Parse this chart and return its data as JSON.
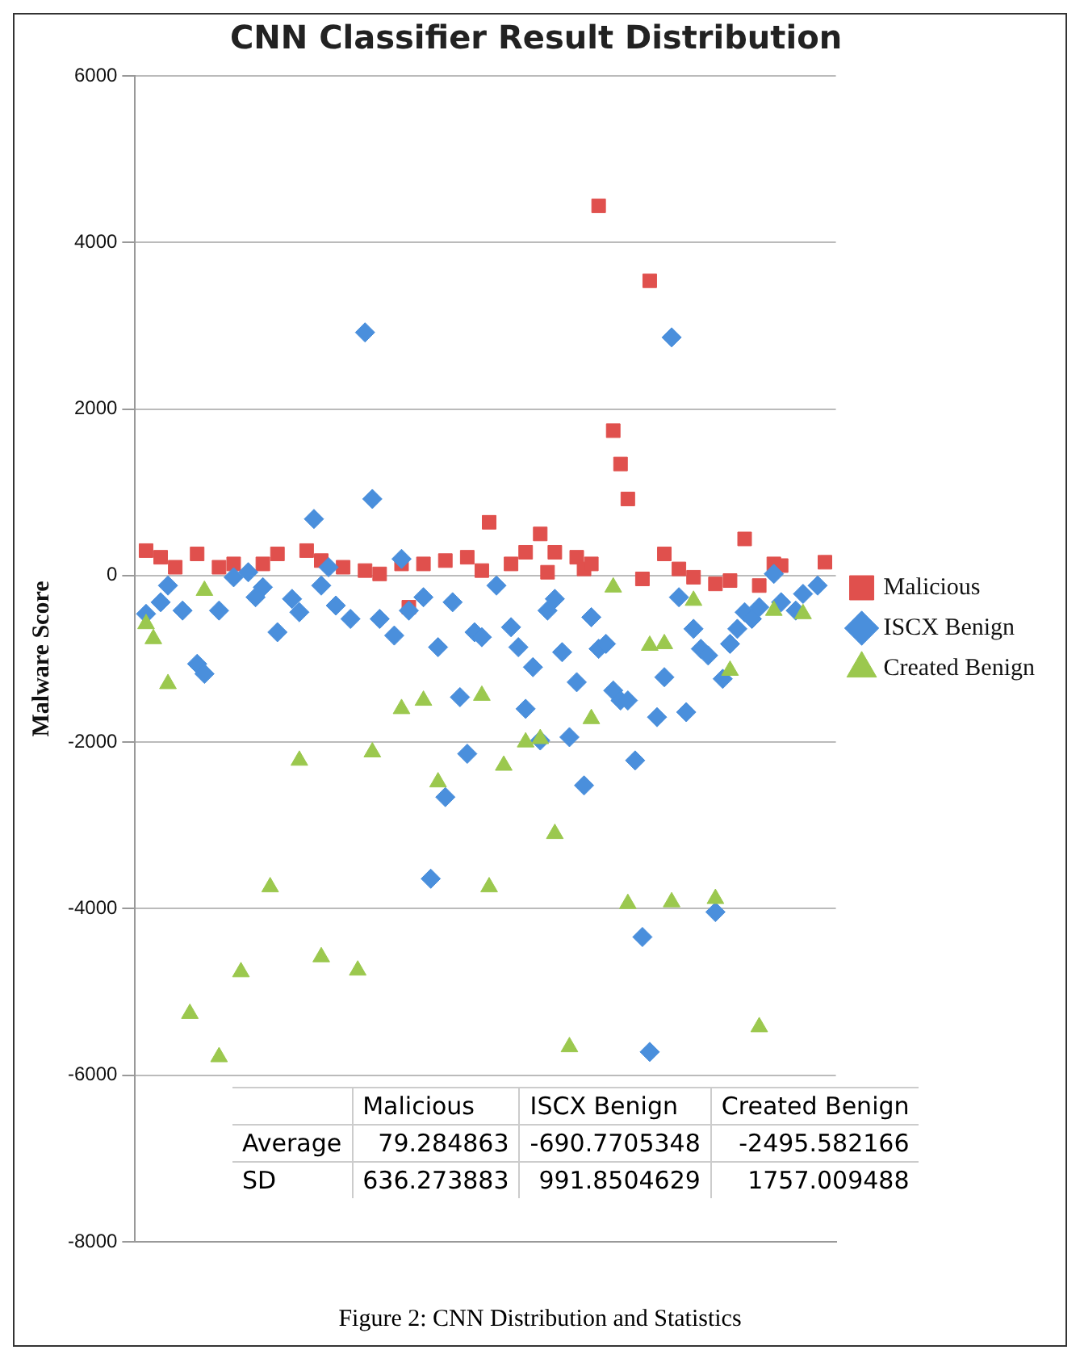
{
  "chart_data": {
    "type": "scatter",
    "title": "CNN Classifier Result Distribution",
    "ylabel": "Malware Score",
    "ylim": [
      -8000,
      6000
    ],
    "yticks": [
      -8000,
      -6000,
      -4000,
      -2000,
      0,
      2000,
      4000,
      6000
    ],
    "tick_labels": "y",
    "grid": "y",
    "legend": "right",
    "categories": [
      null,
      null,
      null,
      null,
      null,
      null,
      null,
      null,
      null,
      null,
      null,
      null,
      null,
      null,
      null,
      null,
      null,
      null,
      null,
      null,
      null,
      null,
      null,
      null,
      null,
      null,
      null,
      null,
      null,
      null,
      null,
      null,
      null,
      null,
      null,
      null,
      null,
      null,
      null,
      null,
      null,
      null,
      null,
      null,
      null,
      null,
      null,
      null,
      null,
      null,
      null,
      null,
      null,
      null,
      null,
      null,
      null,
      null,
      null,
      null,
      null,
      null,
      null,
      null,
      null,
      null,
      null,
      null,
      null,
      null,
      null,
      null,
      null,
      null,
      null,
      null,
      null,
      null,
      null,
      null,
      null,
      null,
      null,
      null,
      null,
      null,
      null,
      null,
      null,
      null,
      null,
      null,
      null,
      null,
      null,
      null
    ],
    "series": [
      {
        "name": "Malicious",
        "color": "#e0504d",
        "marker": "square",
        "values": [
          null,
          300,
          null,
          220,
          null,
          100,
          null,
          null,
          260,
          null,
          null,
          100,
          null,
          140,
          null,
          null,
          null,
          140,
          null,
          260,
          null,
          null,
          null,
          300,
          null,
          180,
          null,
          null,
          100,
          null,
          null,
          60,
          null,
          20,
          null,
          null,
          140,
          -380,
          null,
          140,
          null,
          null,
          180,
          null,
          null,
          220,
          null,
          60,
          640,
          null,
          null,
          140,
          null,
          280,
          null,
          500,
          40,
          280,
          null,
          null,
          220,
          80,
          140,
          4440,
          null,
          1740,
          1340,
          920,
          null,
          -40,
          3540,
          null,
          260,
          null,
          80,
          null,
          -20,
          null,
          null,
          -100,
          null,
          -60,
          null,
          440,
          null,
          -120,
          null,
          140,
          120,
          null,
          null,
          null,
          null,
          null,
          160,
          null
        ]
      },
      {
        "name": "ISCX Benign",
        "color": "#4a8fdc",
        "marker": "diamond",
        "values": [
          null,
          -460,
          null,
          -320,
          -120,
          null,
          -420,
          null,
          -1060,
          -1180,
          null,
          -420,
          null,
          -20,
          null,
          40,
          -260,
          -140,
          null,
          -680,
          null,
          -280,
          -440,
          null,
          680,
          -120,
          100,
          -360,
          null,
          -520,
          null,
          2920,
          920,
          -520,
          null,
          -720,
          200,
          -420,
          null,
          -260,
          -3640,
          -860,
          -2660,
          -320,
          -1460,
          -2140,
          -680,
          -740,
          null,
          -120,
          null,
          -620,
          -860,
          -1600,
          -1100,
          -1980,
          -420,
          -280,
          -920,
          -1940,
          -1280,
          -2520,
          -500,
          -880,
          -820,
          -1380,
          -1500,
          -1500,
          -2220,
          -4340,
          -5720,
          -1700,
          -1220,
          2860,
          -260,
          -1640,
          -640,
          -880,
          -960,
          -4040,
          -1240,
          -820,
          -640,
          -440,
          -520,
          -380,
          null,
          20,
          -320,
          null,
          -420,
          -220,
          null,
          -120,
          null,
          null
        ]
      },
      {
        "name": "Created Benign",
        "color": "#9bc84e",
        "marker": "triangle",
        "values": [
          null,
          -580,
          -760,
          null,
          -1300,
          null,
          null,
          -5260,
          null,
          -180,
          null,
          -5780,
          null,
          null,
          -4760,
          null,
          null,
          null,
          -3740,
          null,
          null,
          null,
          -2220,
          null,
          null,
          -4580,
          null,
          null,
          null,
          null,
          -4740,
          null,
          -2120,
          null,
          null,
          null,
          -1600,
          null,
          null,
          -1500,
          null,
          -2480,
          null,
          null,
          null,
          null,
          null,
          -1440,
          -3740,
          null,
          -2280,
          null,
          null,
          -2000,
          null,
          -1960,
          null,
          -3100,
          null,
          -5660,
          null,
          null,
          -1720,
          null,
          null,
          -140,
          null,
          -3940,
          null,
          null,
          -840,
          null,
          -820,
          -3920,
          null,
          null,
          -300,
          null,
          null,
          -3880,
          null,
          -1140,
          null,
          null,
          null,
          -5420,
          null,
          -420,
          null,
          null,
          null,
          -460,
          null,
          null,
          null,
          null
        ]
      }
    ],
    "annotations": [
      "Malicious",
      "ISCX Benign",
      "Created Benign",
      "Average",
      "79.284863",
      "-690.7705348",
      "-2495.582166",
      "SD",
      "636.273883",
      "991.8504629",
      "1757.009488",
      "Figure 2: CNN Distribution and Statistics"
    ]
  }
}
